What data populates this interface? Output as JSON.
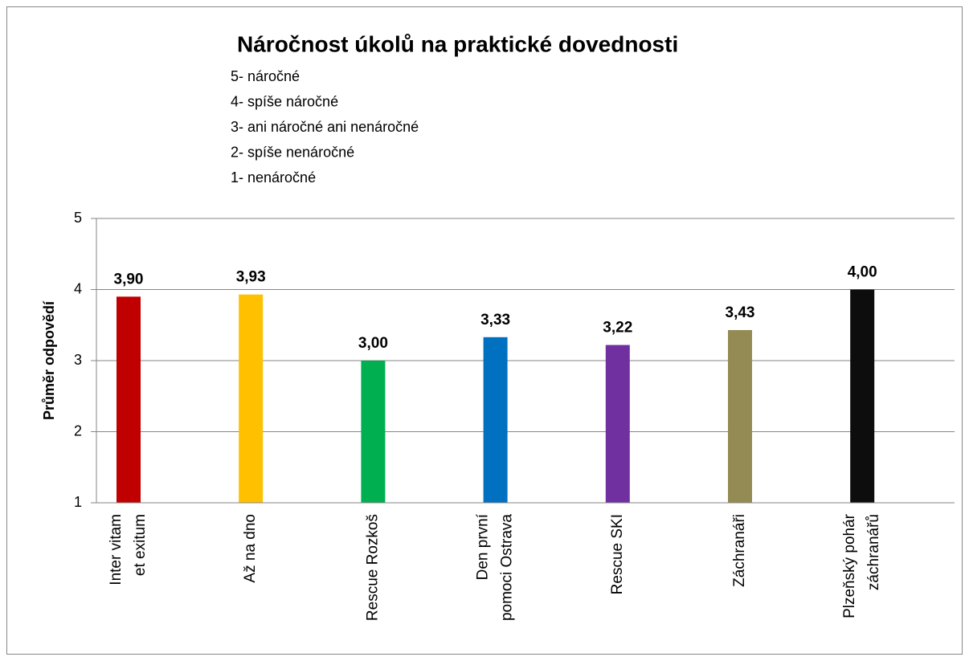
{
  "chart_data": {
    "type": "bar",
    "title": "Náročnost úkolů na praktické dovednosti",
    "subtitle": [
      "5- náročné",
      "4- spíše náročné",
      "3- ani náročné ani nenáročné",
      "2- spíše nenáročné",
      "1- nenáročné"
    ],
    "y_label": "Průměr odpovědí",
    "categories": [
      [
        "Inter vitam",
        "et exitum"
      ],
      [
        "Až na dno"
      ],
      [
        "Rescue Rozkoš"
      ],
      [
        "Den první",
        "pomoci Ostrava"
      ],
      [
        "Rescue SKI"
      ],
      [
        "Záchranáři"
      ],
      [
        "Plzeňský pohár",
        "záchranářů"
      ]
    ],
    "values": [
      3.9,
      3.93,
      3.0,
      3.33,
      3.22,
      3.43,
      4.0
    ],
    "value_labels": [
      "3,90",
      "3,93",
      "3,00",
      "3,33",
      "3,22",
      "3,43",
      "4,00"
    ],
    "colors": [
      "#c00000",
      "#ffc000",
      "#00b050",
      "#0070c0",
      "#7030a0",
      "#948a54",
      "#0d0d0d"
    ],
    "ylim": [
      1,
      5
    ],
    "yticks": [
      1,
      2,
      3,
      4,
      5
    ],
    "grid": true
  }
}
